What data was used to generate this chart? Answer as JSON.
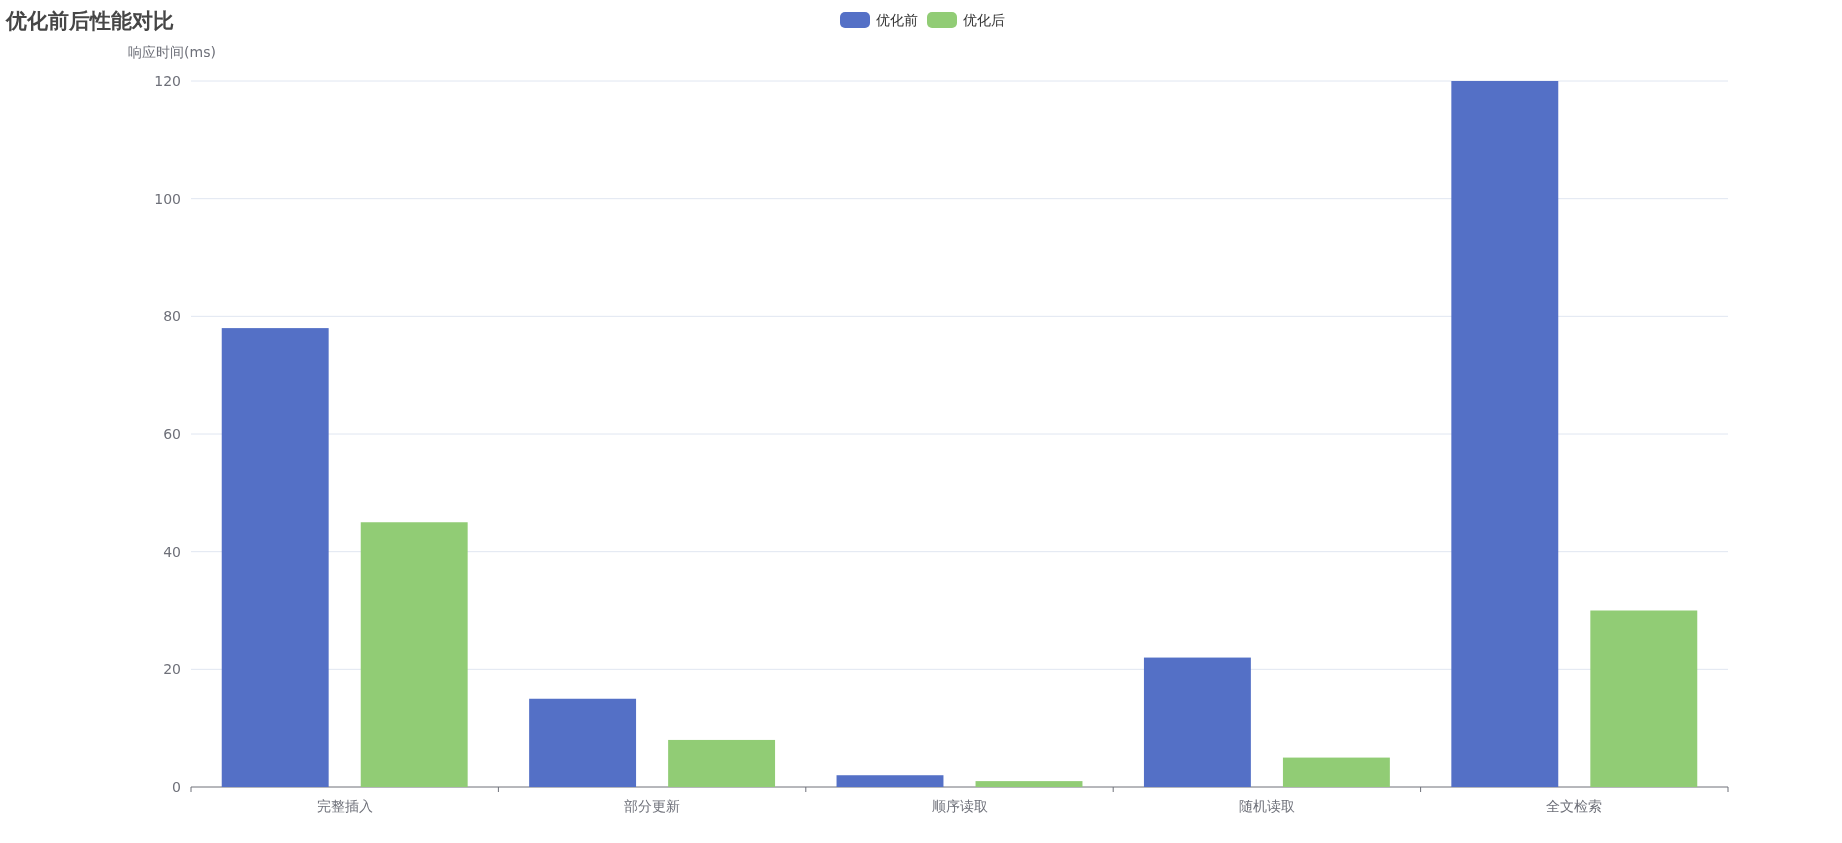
{
  "chart_data": {
    "type": "bar",
    "title": "优化前后性能对比",
    "ylabel": "响应时间(ms)",
    "categories": [
      "完整插入",
      "部分更新",
      "顺序读取",
      "随机读取",
      "全文检索"
    ],
    "series": [
      {
        "name": "优化前",
        "color": "#5470c6",
        "values": [
          78,
          15,
          2,
          22,
          120
        ]
      },
      {
        "name": "优化后",
        "color": "#91cc75",
        "values": [
          45,
          8,
          1,
          5,
          30
        ]
      }
    ],
    "ylim": [
      0,
      120
    ],
    "yticks": [
      0,
      20,
      40,
      60,
      80,
      100,
      120
    ],
    "grid": "y",
    "legend": "top"
  }
}
